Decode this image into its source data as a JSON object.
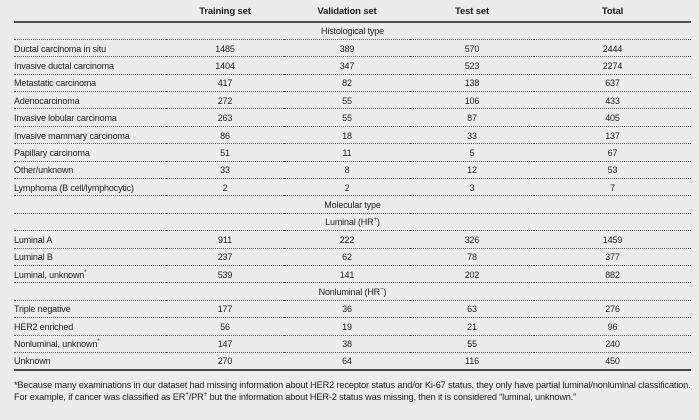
{
  "colors": {
    "background": "#ecedea",
    "text": "#1e1e1c",
    "solid_rule": "#50514e",
    "dotted_rule": "#5c5c58"
  },
  "table": {
    "columns": [
      "",
      "Training set",
      "Validation set",
      "Test set",
      "Total"
    ],
    "rows": [
      {
        "type": "section",
        "parts": [
          {
            "t": "Histological type"
          }
        ]
      },
      {
        "type": "data",
        "parts": [
          {
            "t": "Ductal carcinoma in situ"
          }
        ],
        "values": [
          "1485",
          "389",
          "570",
          "2444"
        ]
      },
      {
        "type": "data",
        "parts": [
          {
            "t": "Invasive ductal carcinoma"
          }
        ],
        "values": [
          "1404",
          "347",
          "523",
          "2274"
        ]
      },
      {
        "type": "data",
        "parts": [
          {
            "t": "Metastatic carcinoma"
          }
        ],
        "values": [
          "417",
          "82",
          "138",
          "637"
        ]
      },
      {
        "type": "data",
        "parts": [
          {
            "t": "Adenocarcinoma"
          }
        ],
        "values": [
          "272",
          "55",
          "106",
          "433"
        ]
      },
      {
        "type": "data",
        "parts": [
          {
            "t": "Invasive lobular carcinoma"
          }
        ],
        "values": [
          "263",
          "55",
          "87",
          "405"
        ]
      },
      {
        "type": "data",
        "parts": [
          {
            "t": "Invasive mammary carcinoma"
          }
        ],
        "values": [
          "86",
          "18",
          "33",
          "137"
        ]
      },
      {
        "type": "data",
        "parts": [
          {
            "t": "Papillary carcinoma"
          }
        ],
        "values": [
          "51",
          "11",
          "5",
          "67"
        ]
      },
      {
        "type": "data",
        "parts": [
          {
            "t": "Other/unknown"
          }
        ],
        "values": [
          "33",
          "8",
          "12",
          "53"
        ]
      },
      {
        "type": "data",
        "parts": [
          {
            "t": "Lymphoma (B cell/lymphocytic)"
          }
        ],
        "values": [
          "2",
          "2",
          "3",
          "7"
        ]
      },
      {
        "type": "section",
        "parts": [
          {
            "t": "Molecular type"
          }
        ]
      },
      {
        "type": "section",
        "parts": [
          {
            "t": "Luminal (HR"
          },
          {
            "t": "+",
            "sup": true
          },
          {
            "t": ")"
          }
        ]
      },
      {
        "type": "data",
        "parts": [
          {
            "t": "Luminal A"
          }
        ],
        "values": [
          "911",
          "222",
          "326",
          "1459"
        ]
      },
      {
        "type": "data",
        "parts": [
          {
            "t": "Luminal B"
          }
        ],
        "values": [
          "237",
          "62",
          "78",
          "377"
        ]
      },
      {
        "type": "data",
        "parts": [
          {
            "t": "Luminal, unknown"
          },
          {
            "t": "*",
            "sup": true
          }
        ],
        "values": [
          "539",
          "141",
          "202",
          "882"
        ]
      },
      {
        "type": "section",
        "parts": [
          {
            "t": "Nonluminal (HR"
          },
          {
            "t": "−",
            "sup": true
          },
          {
            "t": ")"
          }
        ]
      },
      {
        "type": "data",
        "parts": [
          {
            "t": "Triple negative"
          }
        ],
        "values": [
          "177",
          "36",
          "63",
          "276"
        ]
      },
      {
        "type": "data",
        "parts": [
          {
            "t": "HER2 enriched"
          }
        ],
        "values": [
          "56",
          "19",
          "21",
          "96"
        ]
      },
      {
        "type": "data",
        "parts": [
          {
            "t": "Nonluminal, unknown"
          },
          {
            "t": "*",
            "sup": true
          }
        ],
        "values": [
          "147",
          "38",
          "55",
          "240"
        ]
      },
      {
        "type": "data",
        "parts": [
          {
            "t": "Unknown"
          }
        ],
        "values": [
          "270",
          "64",
          "116",
          "450"
        ]
      }
    ]
  },
  "footnote": {
    "parts": [
      {
        "t": "*Because many examinations in our dataset had missing information about HER2 receptor status and/or Ki-67 status, they only have partial luminal/nonluminal classification. For example, if cancer was classified as ER"
      },
      {
        "t": "+",
        "sup": true
      },
      {
        "t": "/PR"
      },
      {
        "t": "+",
        "sup": true
      },
      {
        "t": " but the information about HER-2 status was missing, then it is considered “luminal, unknown.”"
      }
    ]
  }
}
